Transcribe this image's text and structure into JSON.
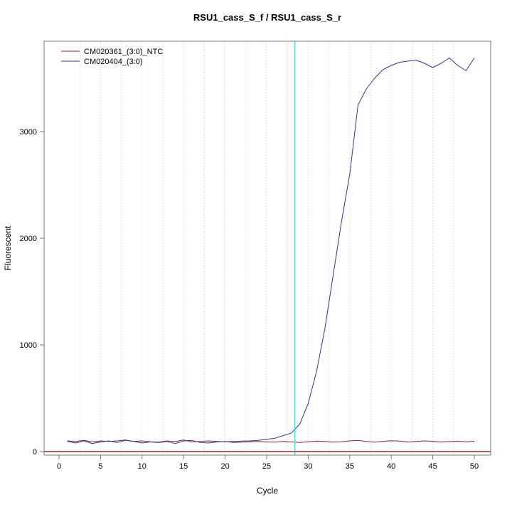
{
  "chart_data": {
    "type": "line",
    "title": "RSU1_cass_S_f / RSU1_cass_S_r",
    "xlabel": "Cycle",
    "ylabel": "Fluorescent",
    "xlim": [
      0,
      50
    ],
    "ylim": [
      0,
      3800
    ],
    "xticks": [
      0,
      5,
      10,
      15,
      20,
      25,
      30,
      35,
      40,
      45,
      50
    ],
    "yticks": [
      0,
      1000,
      2000,
      3000
    ],
    "grid": {
      "x_step": 2.5,
      "style": "dotted",
      "color": "#c9c9c9"
    },
    "legend_position": "top-left",
    "threshold_line": {
      "x": 28.4,
      "color": "#00ffff"
    },
    "baseline": {
      "y": 0,
      "color": "#8b0000"
    },
    "box_color": "#777777",
    "x": [
      1,
      2,
      3,
      4,
      5,
      6,
      7,
      8,
      9,
      10,
      11,
      12,
      13,
      14,
      15,
      16,
      17,
      18,
      19,
      20,
      21,
      22,
      23,
      24,
      25,
      26,
      27,
      28,
      29,
      30,
      31,
      32,
      33,
      34,
      35,
      36,
      37,
      38,
      39,
      40,
      41,
      42,
      43,
      44,
      45,
      46,
      47,
      48,
      49,
      50
    ],
    "series": [
      {
        "name": "CM020361_(3:0)_NTC",
        "color": "#8b2323",
        "values": [
          95,
          80,
          100,
          75,
          90,
          100,
          85,
          105,
          95,
          80,
          90,
          85,
          95,
          75,
          100,
          105,
          85,
          80,
          90,
          95,
          85,
          88,
          92,
          95,
          90,
          88,
          95,
          90,
          85,
          92,
          98,
          95,
          88,
          92,
          100,
          105,
          95,
          88,
          95,
          102,
          98,
          90,
          95,
          100,
          96,
          90,
          94,
          98,
          92,
          96
        ]
      },
      {
        "name": "CM020404_(3:0)",
        "color": "#333399",
        "values": [
          100,
          95,
          105,
          90,
          100,
          95,
          100,
          108,
          95,
          100,
          92,
          88,
          100,
          95,
          108,
          90,
          95,
          100,
          95,
          92,
          95,
          98,
          100,
          105,
          115,
          125,
          150,
          175,
          260,
          450,
          750,
          1150,
          1650,
          2150,
          2600,
          3250,
          3400,
          3500,
          3580,
          3620,
          3650,
          3660,
          3670,
          3640,
          3600,
          3640,
          3690,
          3620,
          3570,
          3690
        ]
      }
    ]
  }
}
